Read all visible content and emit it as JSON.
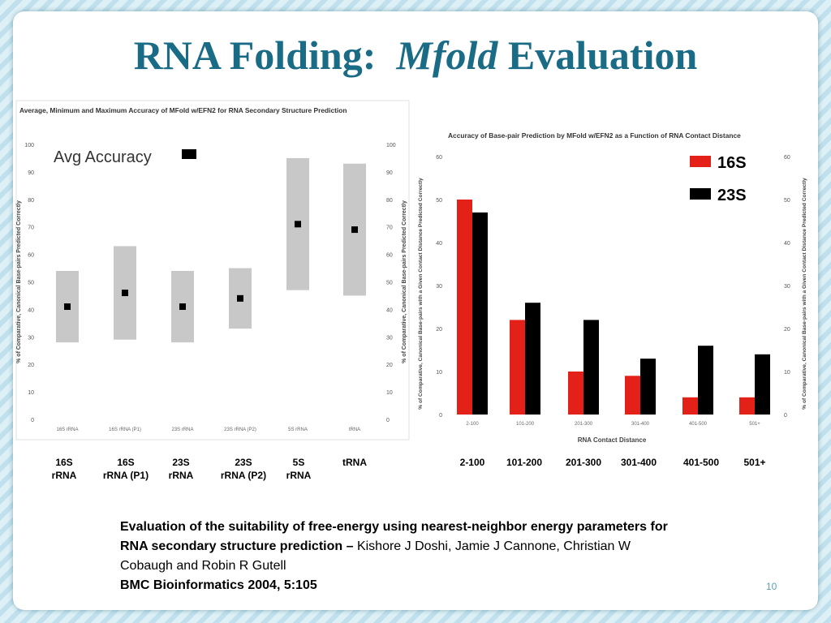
{
  "slide": {
    "title_part1": "RNA Folding:",
    "title_italic": "Mfold",
    "title_part2": "Evaluation",
    "page_number": "10"
  },
  "colors": {
    "title": "#1a6b86",
    "box": "#c8c8c8",
    "series_16S": "#e32119",
    "series_23S": "#000000"
  },
  "chart_data": [
    {
      "type": "boxplot",
      "title": "Average, Minimum and Maximum Accuracy of MFold w/EFN2 for RNA Secondary Structure Prediction",
      "ylabel": "% of Comparative, Canonical Base-pairs Predicted Correctly",
      "ylim": [
        0,
        100
      ],
      "yticks": [
        "0",
        "10",
        "20",
        "30",
        "40",
        "50",
        "60",
        "70",
        "80",
        "90",
        "100"
      ],
      "legend": "Avg Accuracy",
      "categories": [
        "16S rRNA",
        "16S rRNA (P1)",
        "23S rRNA",
        "23S rRNA (P2)",
        "5S rRNA",
        "tRNA"
      ],
      "category_labels": [
        {
          "line1": "16S",
          "line2": "rRNA"
        },
        {
          "line1": "16S",
          "line2": "rRNA (P1)"
        },
        {
          "line1": "23S",
          "line2": "rRNA"
        },
        {
          "line1": "23S",
          "line2": "rRNA (P2)"
        },
        {
          "line1": "5S",
          "line2": "rRNA"
        },
        {
          "line1": "tRNA",
          "line2": ""
        }
      ],
      "lower": [
        28,
        29,
        28,
        33,
        47,
        45
      ],
      "upper": [
        54,
        63,
        54,
        55,
        95,
        93
      ],
      "average": [
        41,
        46,
        41,
        44,
        71,
        69
      ],
      "grid": false
    },
    {
      "type": "bar",
      "title": "Accuracy of Base-pair Prediction by MFold w/EFN2 as a Function of RNA Contact Distance",
      "xlabel": "RNA Contact Distance",
      "ylabel": "% of Comparative, Canonical Base-pairs with a Given Contact Distance Predicted Correctly",
      "ylim": [
        0,
        60
      ],
      "yticks": [
        "0",
        "10",
        "20",
        "30",
        "40",
        "50",
        "60"
      ],
      "categories": [
        "2-100",
        "101-200",
        "201-300",
        "301-400",
        "401-500",
        "501+"
      ],
      "series": [
        {
          "name": "16S",
          "values": [
            50,
            22,
            10,
            9,
            4,
            4
          ]
        },
        {
          "name": "23S",
          "values": [
            47,
            26,
            22,
            13,
            16,
            14
          ]
        }
      ],
      "legend_position": "top-right",
      "grid": false
    }
  ],
  "caption": {
    "bold_text": "Evaluation of the suitability of free-energy using nearest-neighbor energy parameters for RNA secondary structure prediction –",
    "authors": "Kishore J Doshi, Jamie J Cannone, Christian W Cobaugh and Robin R Gutell",
    "citation": "BMC Bioinformatics 2004, 5:105"
  }
}
